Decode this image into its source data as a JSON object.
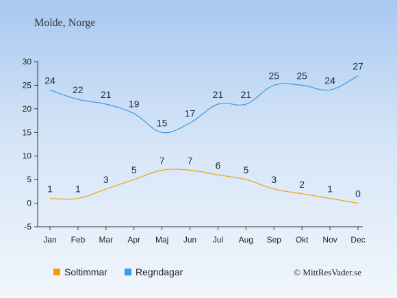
{
  "title": "Molde, Norge",
  "copyright": "© MittResVader.se",
  "chart_data": {
    "type": "line",
    "categories": [
      "Jan",
      "Feb",
      "Mar",
      "Apr",
      "Maj",
      "Jun",
      "Jul",
      "Aug",
      "Sep",
      "Okt",
      "Nov",
      "Dec"
    ],
    "y_ticks": [
      -5,
      0,
      5,
      10,
      15,
      20,
      25,
      30
    ],
    "ylim": [
      -5,
      30
    ],
    "grid": false,
    "legend_position": "bottom",
    "series": [
      {
        "name": "Soltimmar",
        "color": "#f5a00a",
        "values": [
          1,
          1,
          3,
          5,
          7,
          7,
          6,
          5,
          3,
          2,
          1,
          0
        ]
      },
      {
        "name": "Regndagar",
        "color": "#3a9ae2",
        "values": [
          24,
          22,
          21,
          19,
          15,
          17,
          21,
          21,
          25,
          25,
          24,
          27
        ]
      }
    ]
  }
}
